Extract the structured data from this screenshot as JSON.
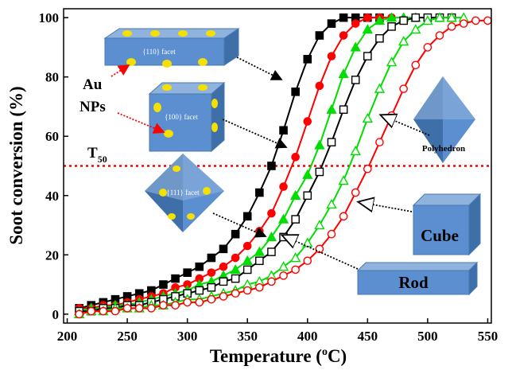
{
  "chart_data": {
    "type": "line",
    "x_label": {
      "text": "Temperature (",
      "sup": "o",
      "after": "C)"
    },
    "y_label": "Soot conversion (%)",
    "xlim": [
      197,
      553
    ],
    "ylim": [
      -3,
      103
    ],
    "xticks": [
      200,
      250,
      300,
      350,
      400,
      450,
      500,
      550
    ],
    "yticks": [
      0,
      20,
      40,
      60,
      80,
      100
    ],
    "x": [
      210,
      220,
      230,
      240,
      250,
      260,
      270,
      280,
      290,
      300,
      310,
      320,
      330,
      340,
      350,
      360,
      370,
      380,
      390,
      400,
      410,
      420,
      430,
      440,
      450,
      460,
      470,
      480,
      490,
      500,
      510,
      520,
      530,
      540,
      550
    ],
    "series": [
      {
        "color": "#000000",
        "marker": "square",
        "filled": true,
        "values": [
          2,
          3,
          4,
          5,
          6,
          7,
          8,
          10,
          12,
          14,
          16,
          19,
          22,
          27,
          33,
          41,
          50,
          62,
          75,
          86,
          94,
          98,
          100,
          100,
          100,
          100,
          null,
          null,
          null,
          null,
          null,
          null,
          null,
          null,
          null
        ]
      },
      {
        "color": "#ff0000",
        "marker": "circle",
        "filled": true,
        "values": [
          2,
          2,
          3,
          3,
          4,
          5,
          6,
          7,
          9,
          10,
          12,
          14,
          16,
          19,
          23,
          28,
          34,
          43,
          53,
          65,
          77,
          87,
          94,
          98,
          100,
          100,
          100,
          null,
          null,
          null,
          null,
          null,
          null,
          null,
          null
        ]
      },
      {
        "color": "#00dd00",
        "marker": "triangle",
        "filled": true,
        "values": [
          1,
          2,
          2,
          3,
          3,
          4,
          5,
          6,
          7,
          8,
          10,
          11,
          13,
          15,
          18,
          21,
          26,
          32,
          40,
          47,
          57,
          69,
          81,
          90,
          96,
          99,
          100,
          100,
          100,
          null,
          null,
          null,
          null,
          null,
          null
        ]
      },
      {
        "color": "#000000",
        "marker": "square",
        "filled": false,
        "values": [
          1,
          1,
          2,
          2,
          3,
          3,
          4,
          5,
          6,
          7,
          8,
          9,
          11,
          12,
          15,
          18,
          21,
          26,
          32,
          40,
          48,
          58,
          69,
          79,
          87,
          93,
          97,
          99,
          100,
          100,
          100,
          100,
          null,
          null,
          null
        ]
      },
      {
        "color": "#00dd00",
        "marker": "triangle",
        "filled": false,
        "values": [
          0,
          1,
          1,
          2,
          2,
          2,
          3,
          3,
          4,
          5,
          5,
          6,
          7,
          8,
          10,
          11,
          13,
          16,
          19,
          24,
          30,
          37,
          45,
          55,
          66,
          76,
          85,
          92,
          96,
          99,
          100,
          100,
          100,
          null,
          null
        ]
      },
      {
        "color": "#ff0000",
        "marker": "circle",
        "filled": false,
        "values": [
          0,
          1,
          1,
          1,
          2,
          2,
          2,
          3,
          3,
          4,
          4,
          5,
          6,
          7,
          8,
          9,
          11,
          13,
          15,
          18,
          22,
          27,
          33,
          41,
          49,
          58,
          67,
          76,
          84,
          90,
          94,
          97,
          98,
          99,
          99
        ]
      }
    ],
    "reference_line": {
      "value": 50,
      "color": "#ff0000",
      "label": {
        "text": "T",
        "sub": "50"
      }
    },
    "annotations": {
      "facet_110": "{110} facet",
      "facet_100": "{100} facet",
      "facet_111": "{111} facet",
      "au": "Au",
      "nps": "NPs",
      "polyhedron": "Polyhedron",
      "cube": "Cube",
      "rod": "Rod"
    }
  }
}
